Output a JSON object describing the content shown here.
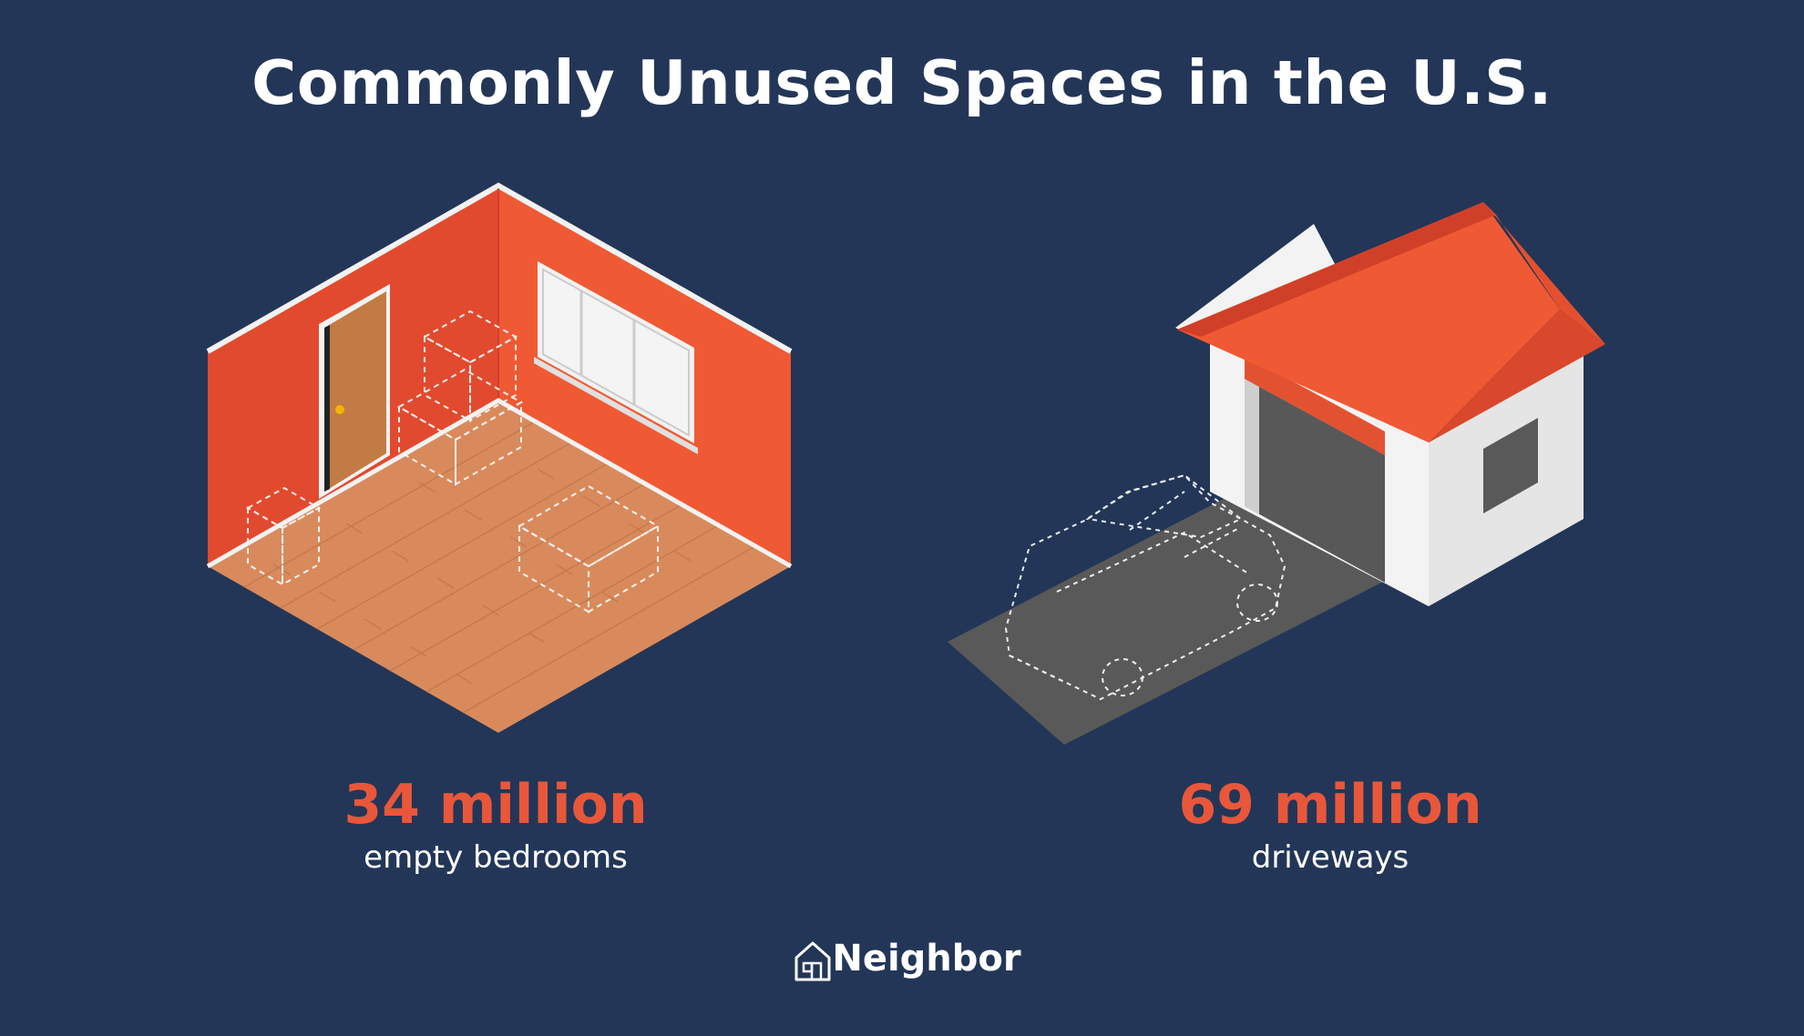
{
  "title": "Commonly Unused Spaces in the U.S.",
  "stats": [
    {
      "value": "34 million",
      "label": "empty bedrooms",
      "illustration_icon": "empty-bedroom-icon"
    },
    {
      "value": "69 million",
      "label": "driveways",
      "illustration_icon": "garage-driveway-icon"
    }
  ],
  "brand": {
    "name": "Neighbor",
    "logo_icon": "house-logo-icon"
  },
  "colors": {
    "background": "#233657",
    "accent": "#e9573a",
    "text": "#ffffff",
    "wall": "#e65234",
    "floor": "#d98a5c",
    "driveway": "#595959"
  }
}
